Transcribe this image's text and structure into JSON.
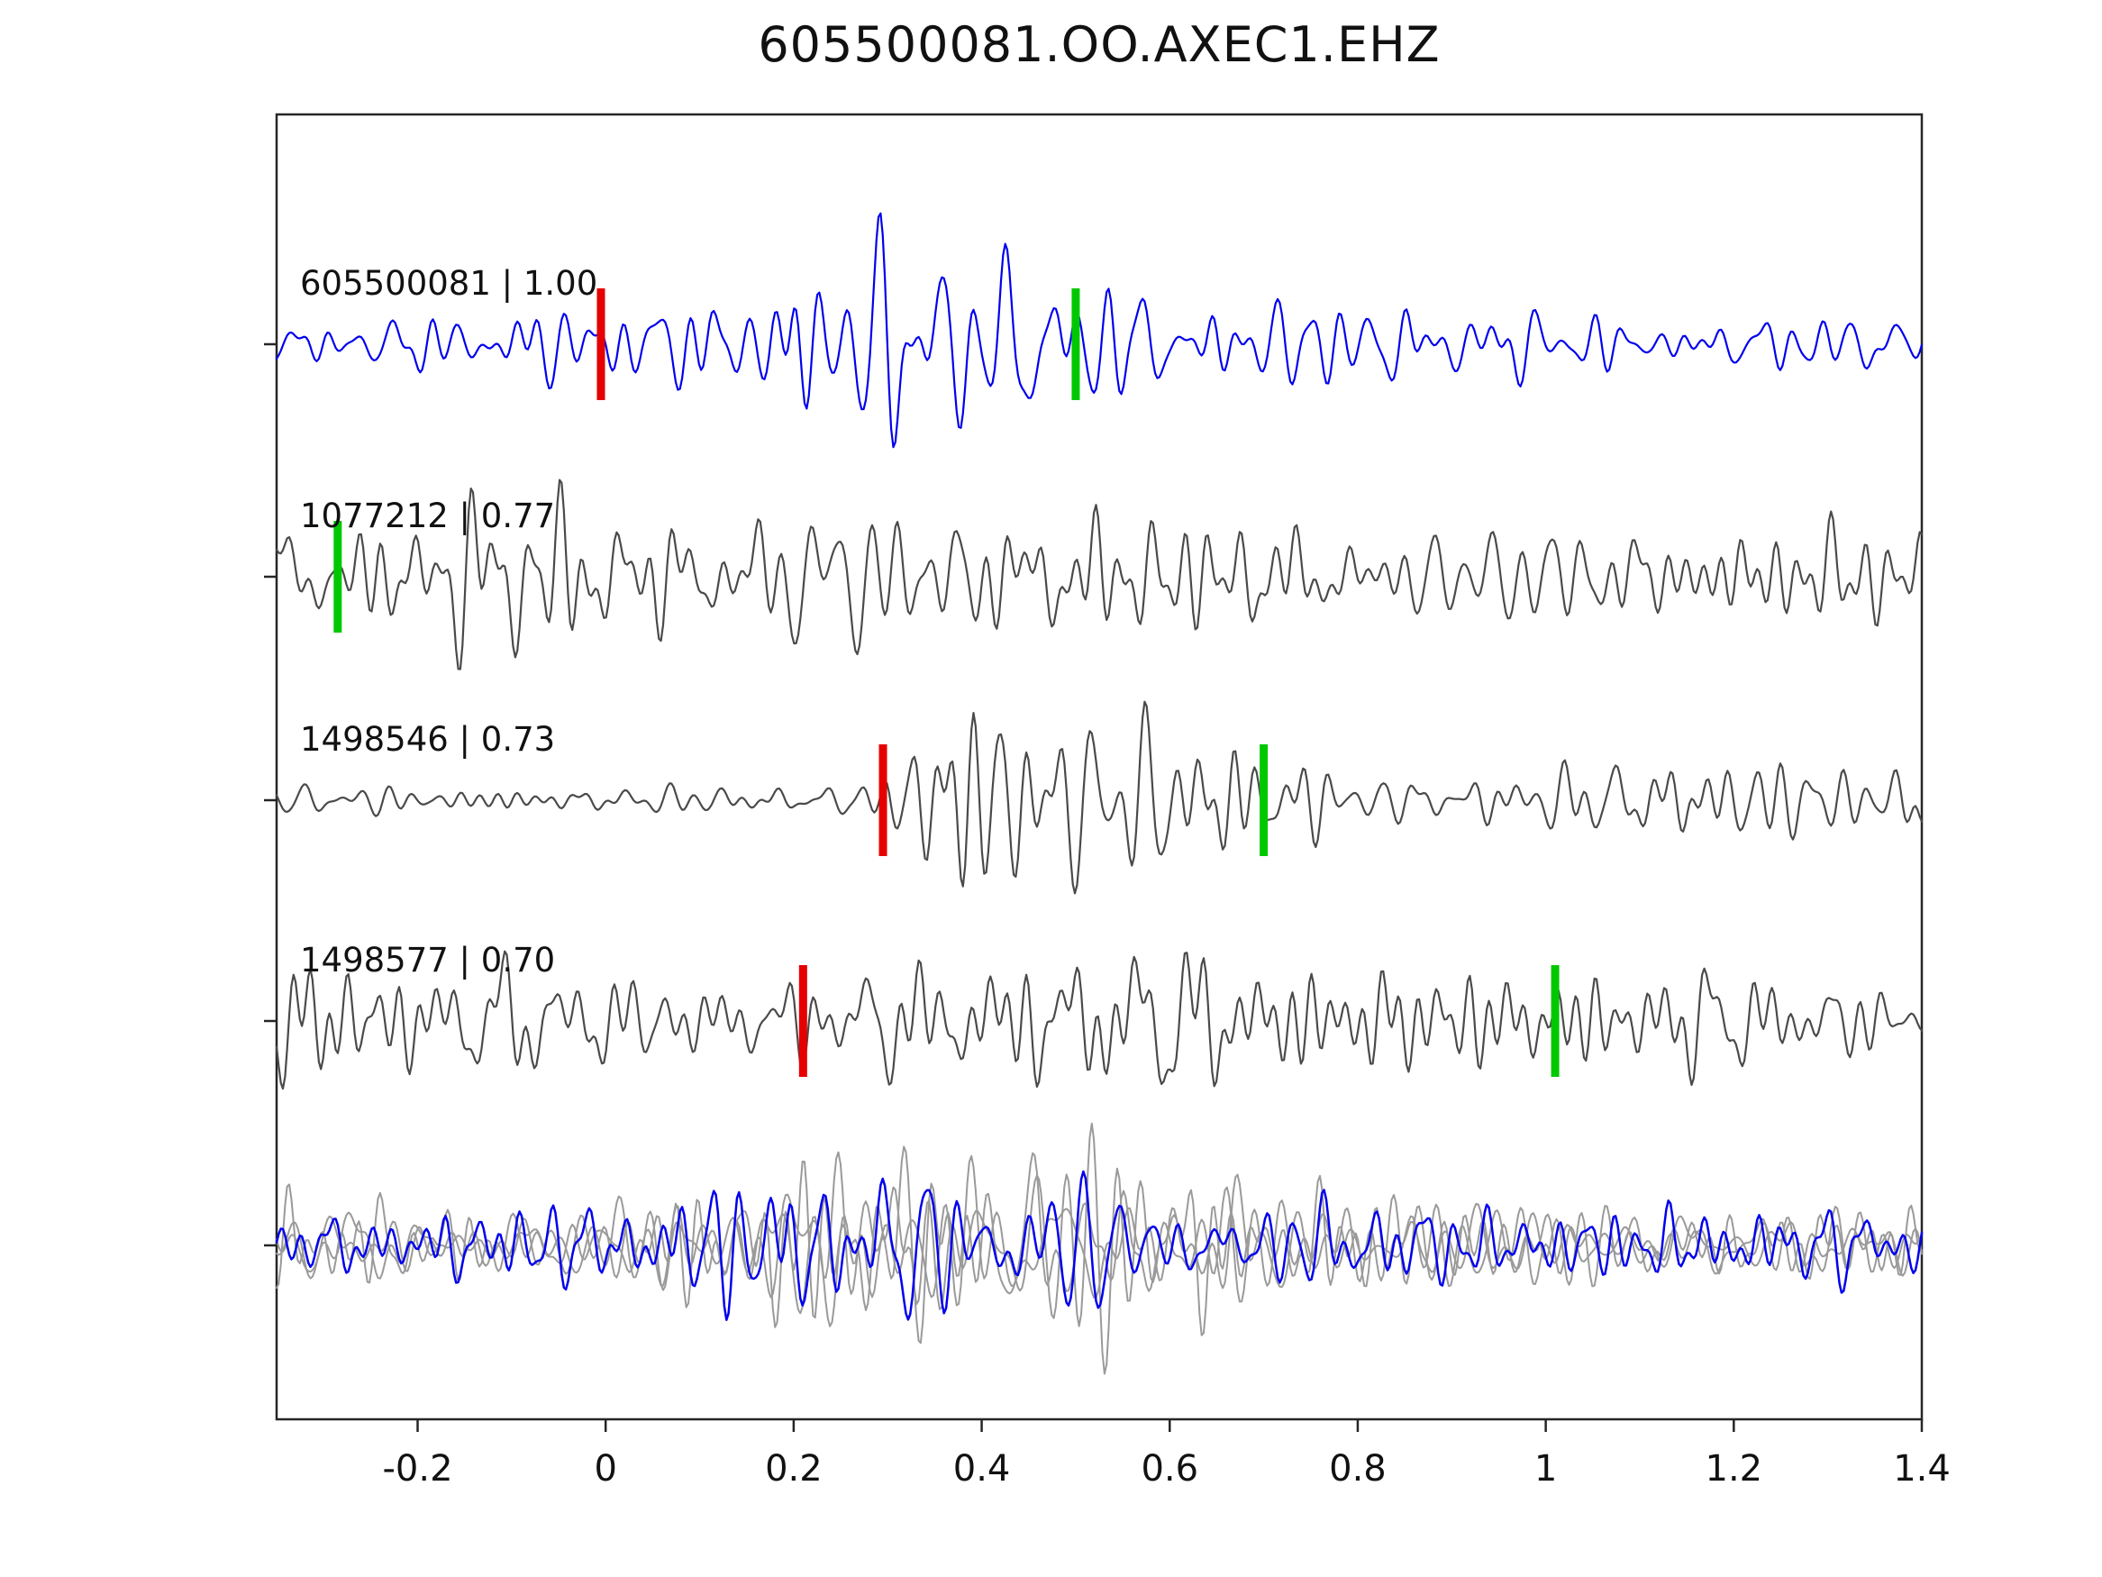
{
  "title": "605500081.OO.AXEC1.EHZ",
  "chart_data": {
    "type": "line",
    "title": "605500081.OO.AXEC1.EHZ",
    "description": "Seismogram template-matching plot: template waveform (blue), three matched event waveforms (gray) with correlation coefficients, red and green phase-pick markers, and an aligned overlay of all traces at the bottom.",
    "x_axis": {
      "min": -0.35,
      "max": 1.4,
      "ticks": [
        {
          "value": -0.2,
          "label": "-0.2"
        },
        {
          "value": 0.0,
          "label": "0"
        },
        {
          "value": 0.2,
          "label": "0.2"
        },
        {
          "value": 0.4,
          "label": "0.4"
        },
        {
          "value": 0.6,
          "label": "0.6"
        },
        {
          "value": 0.8,
          "label": "0.8"
        },
        {
          "value": 1.0,
          "label": "1"
        },
        {
          "value": 1.2,
          "label": "1.2"
        },
        {
          "value": 1.4,
          "label": "1.4"
        }
      ]
    },
    "colors": {
      "template": "#0000ee",
      "match": "#4a4a4a",
      "overlay_gray": "#9a9a9a",
      "pick_red": "#e60000",
      "pick_green": "#00c800",
      "axis": "#262626",
      "text": "#111111"
    },
    "traces": [
      {
        "row": 0,
        "id": "605500081",
        "similarity": 1.0,
        "label": "605500081 | 1.00",
        "color_key": "template",
        "seed": 11,
        "picks": [
          {
            "x": -0.005,
            "color": "pick_red"
          },
          {
            "x": 0.5,
            "color": "pick_green"
          }
        ],
        "envelope": [
          [
            -0.35,
            34
          ],
          [
            0.0,
            44
          ],
          [
            0.1,
            50
          ],
          [
            0.18,
            80
          ],
          [
            0.3,
            112
          ],
          [
            0.45,
            108
          ],
          [
            0.55,
            85
          ],
          [
            0.65,
            60
          ],
          [
            0.8,
            40
          ],
          [
            1.0,
            36
          ],
          [
            1.2,
            34
          ],
          [
            1.27,
            52
          ],
          [
            1.4,
            32
          ]
        ]
      },
      {
        "row": 1,
        "id": "1077212",
        "similarity": 0.77,
        "label": "1077212 | 0.77",
        "color_key": "match",
        "seed": 23,
        "picks": [
          {
            "x": -0.285,
            "color": "pick_green"
          }
        ],
        "envelope": [
          [
            -0.35,
            58
          ],
          [
            -0.1,
            72
          ],
          [
            0.05,
            62
          ],
          [
            0.25,
            82
          ],
          [
            0.4,
            72
          ],
          [
            0.6,
            62
          ],
          [
            0.9,
            58
          ],
          [
            1.2,
            60
          ],
          [
            1.4,
            62
          ]
        ]
      },
      {
        "row": 2,
        "id": "1498546",
        "similarity": 0.73,
        "label": "1498546 | 0.73",
        "color_key": "match",
        "seed": 37,
        "picks": [
          {
            "x": 0.295,
            "color": "pick_red"
          },
          {
            "x": 0.7,
            "color": "pick_green"
          }
        ],
        "envelope": [
          [
            -0.35,
            16
          ],
          [
            0.2,
            18
          ],
          [
            0.29,
            30
          ],
          [
            0.33,
            105
          ],
          [
            0.42,
            115
          ],
          [
            0.52,
            95
          ],
          [
            0.62,
            70
          ],
          [
            0.75,
            52
          ],
          [
            0.95,
            42
          ],
          [
            1.1,
            50
          ],
          [
            1.25,
            55
          ],
          [
            1.4,
            48
          ]
        ]
      },
      {
        "row": 3,
        "id": "1498577",
        "similarity": 0.7,
        "label": "1498577 | 0.70",
        "color_key": "match",
        "seed": 53,
        "picks": [
          {
            "x": 0.21,
            "color": "pick_red"
          },
          {
            "x": 1.01,
            "color": "pick_green"
          }
        ],
        "envelope": [
          [
            -0.35,
            105
          ],
          [
            -0.28,
            70
          ],
          [
            -0.15,
            60
          ],
          [
            0.0,
            62
          ],
          [
            0.2,
            58
          ],
          [
            0.35,
            80
          ],
          [
            0.45,
            78
          ],
          [
            0.6,
            65
          ],
          [
            0.8,
            60
          ],
          [
            1.0,
            58
          ],
          [
            1.2,
            62
          ],
          [
            1.35,
            55
          ],
          [
            1.4,
            40
          ]
        ]
      }
    ],
    "overlay": {
      "row": 4,
      "traces": [
        {
          "color_key": "overlay_gray",
          "seed": 61,
          "envelope": [
            [
              -0.35,
              50
            ],
            [
              0.1,
              48
            ],
            [
              0.28,
              100
            ],
            [
              0.42,
              120
            ],
            [
              0.55,
              95
            ],
            [
              0.7,
              58
            ],
            [
              1.0,
              45
            ],
            [
              1.4,
              48
            ]
          ]
        },
        {
          "color_key": "overlay_gray",
          "seed": 71,
          "envelope": [
            [
              -0.35,
              45
            ],
            [
              0.05,
              55
            ],
            [
              0.3,
              105
            ],
            [
              0.45,
              115
            ],
            [
              0.6,
              80
            ],
            [
              0.8,
              50
            ],
            [
              1.1,
              42
            ],
            [
              1.4,
              50
            ]
          ]
        },
        {
          "color_key": "overlay_gray",
          "seed": 83,
          "envelope": [
            [
              -0.35,
              55
            ],
            [
              0.0,
              50
            ],
            [
              0.3,
              95
            ],
            [
              0.45,
              110
            ],
            [
              0.58,
              85
            ],
            [
              0.75,
              55
            ],
            [
              1.0,
              42
            ],
            [
              1.4,
              45
            ]
          ]
        },
        {
          "color_key": "template",
          "seed": 97,
          "envelope": [
            [
              -0.35,
              36
            ],
            [
              0.0,
              46
            ],
            [
              0.18,
              78
            ],
            [
              0.3,
              112
            ],
            [
              0.45,
              108
            ],
            [
              0.55,
              85
            ],
            [
              0.68,
              55
            ],
            [
              0.85,
              55
            ],
            [
              1.0,
              38
            ],
            [
              1.25,
              48
            ],
            [
              1.4,
              34
            ]
          ]
        }
      ]
    }
  }
}
